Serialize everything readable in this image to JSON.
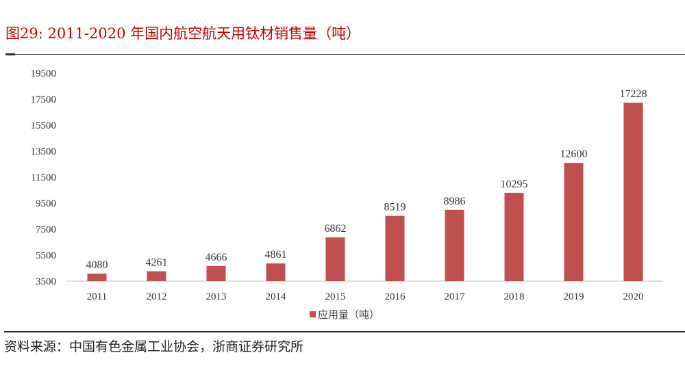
{
  "header": {
    "title": "图29:  2011-2020 年国内航空航天用钛材销售量（吨）"
  },
  "footer": {
    "source": "资料来源：中国有色金属工业协会，浙商证券研究所"
  },
  "chart_data": {
    "type": "bar",
    "title": "图29:  2011-2020 年国内航空航天用钛材销售量（吨）",
    "categories": [
      "2011",
      "2012",
      "2013",
      "2014",
      "2015",
      "2016",
      "2017",
      "2018",
      "2019",
      "2020"
    ],
    "series": [
      {
        "name": "应用量（吨）",
        "values": [
          4080,
          4261,
          4666,
          4861,
          6862,
          8519,
          8986,
          10295,
          12600,
          17228
        ],
        "color": "#c0504d"
      }
    ],
    "ylim": [
      3500,
      19500
    ],
    "yticks": [
      3500,
      5500,
      7500,
      9500,
      11500,
      13500,
      15500,
      17500,
      19500
    ],
    "grid": false,
    "legend": "bottom",
    "xlabel": "",
    "ylabel": ""
  }
}
